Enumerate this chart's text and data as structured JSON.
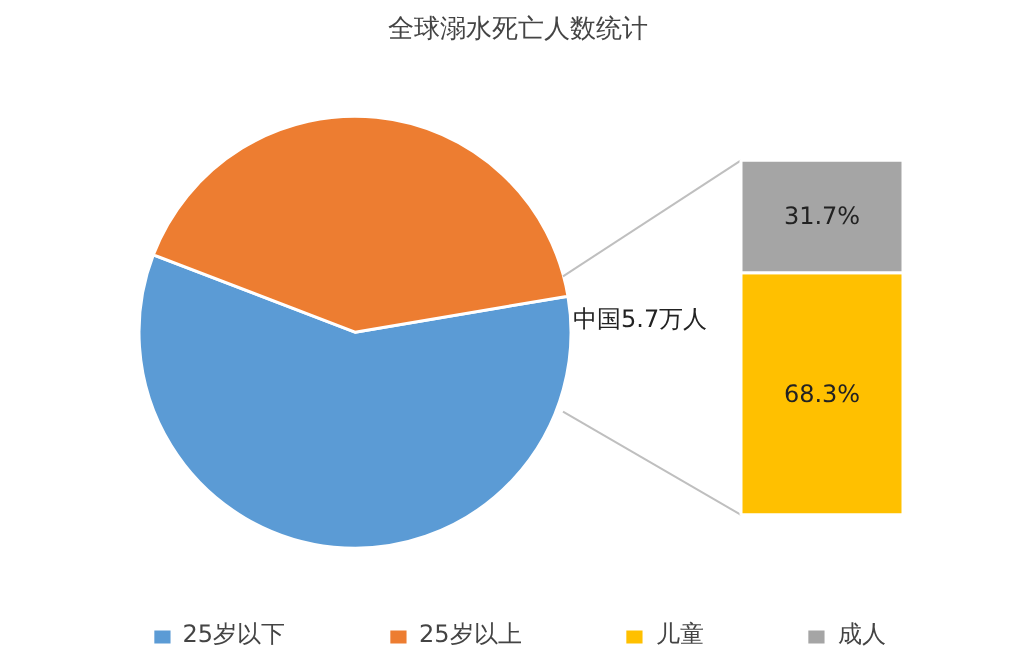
{
  "chart_data": [
    {
      "type": "pie",
      "title": "全球溺水死亡人数统计",
      "categories": [
        "25岁以下",
        "25岁以上"
      ],
      "values": [
        58.5,
        41.5
      ],
      "colors": [
        "#5b9bd5",
        "#ed7d31"
      ],
      "legend": "bottom"
    },
    {
      "type": "bar",
      "stacked": true,
      "categories": [
        null
      ],
      "annotations": [
        "中国5.7万人"
      ],
      "legend": "bottom",
      "series": [
        {
          "name": "儿童",
          "color": "#ffc000",
          "values": [
            68.3
          ],
          "value_labels": [
            "68.3%"
          ]
        },
        {
          "name": "成人",
          "color": "#a5a5a5",
          "values": [
            31.7
          ],
          "value_labels": [
            "31.7%"
          ]
        }
      ]
    }
  ]
}
